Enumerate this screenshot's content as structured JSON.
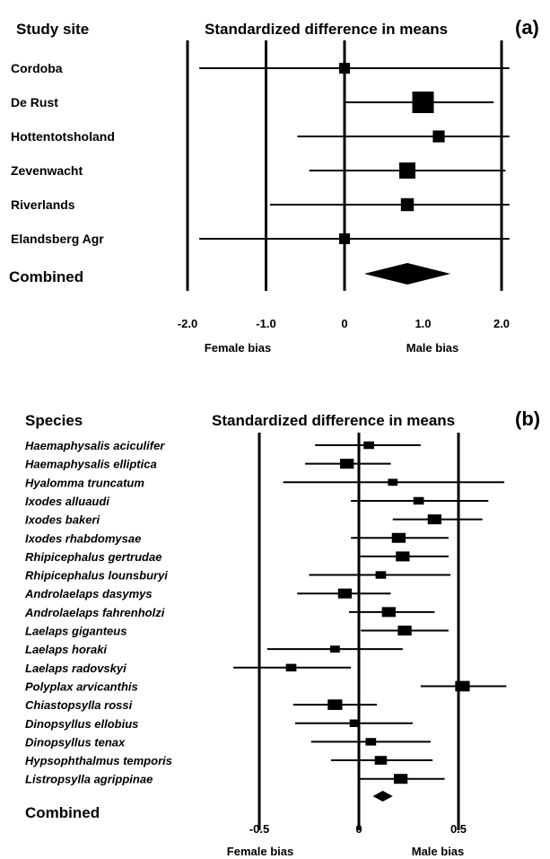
{
  "chart_data": [
    {
      "type": "forest",
      "panel": "(a)",
      "row_header": "Study site",
      "title": "Standardized difference in means",
      "rows": [
        {
          "label": "Cordoba",
          "estimate": 0.0,
          "lower": -1.85,
          "upper": 2.1,
          "size": 0.5
        },
        {
          "label": "De Rust",
          "estimate": 1.0,
          "lower": 0.0,
          "upper": 1.9,
          "size": 1.0
        },
        {
          "label": "Hottentotsholand",
          "estimate": 1.2,
          "lower": -0.6,
          "upper": 2.1,
          "size": 0.55
        },
        {
          "label": "Zevenwacht",
          "estimate": 0.8,
          "lower": -0.45,
          "upper": 2.05,
          "size": 0.75
        },
        {
          "label": "Riverlands",
          "estimate": 0.8,
          "lower": -0.95,
          "upper": 2.1,
          "size": 0.6
        },
        {
          "label": "Elandsberg Agr",
          "estimate": 0.0,
          "lower": -1.85,
          "upper": 2.1,
          "size": 0.5
        }
      ],
      "combined": {
        "label": "Combined",
        "estimate": 0.8,
        "lower": 0.25,
        "upper": 1.35
      },
      "ticks": [
        -2.0,
        -1.0,
        0,
        1.0,
        2.0
      ],
      "tick_labels": [
        "-2.0",
        "-1.0",
        "0",
        "1.0",
        "2.0"
      ],
      "gridlines": [
        -2.0,
        -1.0,
        0,
        2.0
      ],
      "xlim": [
        -2.0,
        2.0
      ],
      "left_label": "Female bias",
      "right_label": "Male bias"
    },
    {
      "type": "forest",
      "panel": "(b)",
      "row_header": "Species",
      "title": "Standardized difference in means",
      "rows": [
        {
          "label": "Haemaphysalis aciculifer",
          "estimate": 0.05,
          "lower": -0.22,
          "upper": 0.31,
          "size": 0.65
        },
        {
          "label": "Haemaphysalis elliptica",
          "estimate": -0.06,
          "lower": -0.27,
          "upper": 0.16,
          "size": 0.85
        },
        {
          "label": "Hyalomma truncatum",
          "estimate": 0.17,
          "lower": -0.38,
          "upper": 0.73,
          "size": 0.6
        },
        {
          "label": "Ixodes alluaudi",
          "estimate": 0.3,
          "lower": -0.04,
          "upper": 0.65,
          "size": 0.65
        },
        {
          "label": "Ixodes bakeri",
          "estimate": 0.38,
          "lower": 0.17,
          "upper": 0.62,
          "size": 0.85
        },
        {
          "label": "Ixodes rhabdomysae",
          "estimate": 0.2,
          "lower": -0.04,
          "upper": 0.45,
          "size": 0.85
        },
        {
          "label": "Rhipicephalus gertrudae",
          "estimate": 0.22,
          "lower": 0.0,
          "upper": 0.45,
          "size": 0.85
        },
        {
          "label": "Rhipicephalus lounsburyi",
          "estimate": 0.11,
          "lower": -0.25,
          "upper": 0.46,
          "size": 0.65
        },
        {
          "label": "Androlaelaps dasymys",
          "estimate": -0.07,
          "lower": -0.31,
          "upper": 0.16,
          "size": 0.85
        },
        {
          "label": "Androlaelaps fahrenholzi",
          "estimate": 0.15,
          "lower": -0.05,
          "upper": 0.38,
          "size": 0.85
        },
        {
          "label": "Laelaps giganteus",
          "estimate": 0.23,
          "lower": 0.01,
          "upper": 0.45,
          "size": 0.85
        },
        {
          "label": "Laelaps horaki",
          "estimate": -0.12,
          "lower": -0.46,
          "upper": 0.22,
          "size": 0.6
        },
        {
          "label": "Laelaps radovskyi",
          "estimate": -0.34,
          "lower": -0.63,
          "upper": -0.04,
          "size": 0.65
        },
        {
          "label": "Polyplax arvicanthis",
          "estimate": 0.52,
          "lower": 0.31,
          "upper": 0.74,
          "size": 0.9
        },
        {
          "label": "Chiastopsylla rossi",
          "estimate": -0.12,
          "lower": -0.33,
          "upper": 0.09,
          "size": 0.9
        },
        {
          "label": "Dinopsyllus ellobius",
          "estimate": -0.02,
          "lower": -0.32,
          "upper": 0.27,
          "size": 0.65
        },
        {
          "label": "Dinopsyllus tenax",
          "estimate": 0.06,
          "lower": -0.24,
          "upper": 0.36,
          "size": 0.65
        },
        {
          "label": "Hypsophthalmus temporis",
          "estimate": 0.11,
          "lower": -0.14,
          "upper": 0.37,
          "size": 0.75
        },
        {
          "label": "Listropsylla agrippinae",
          "estimate": 0.21,
          "lower": 0.0,
          "upper": 0.43,
          "size": 0.85
        }
      ],
      "combined": {
        "label": "Combined",
        "estimate": 0.12,
        "lower": 0.07,
        "upper": 0.17
      },
      "ticks": [
        -0.5,
        0,
        0.5
      ],
      "tick_labels": [
        "-0.5",
        "0",
        "0.5"
      ],
      "gridlines": [
        -0.5,
        0,
        0.5
      ],
      "xlim": [
        -0.65,
        0.75
      ],
      "left_label": "Female bias",
      "right_label": "Male bias"
    }
  ]
}
